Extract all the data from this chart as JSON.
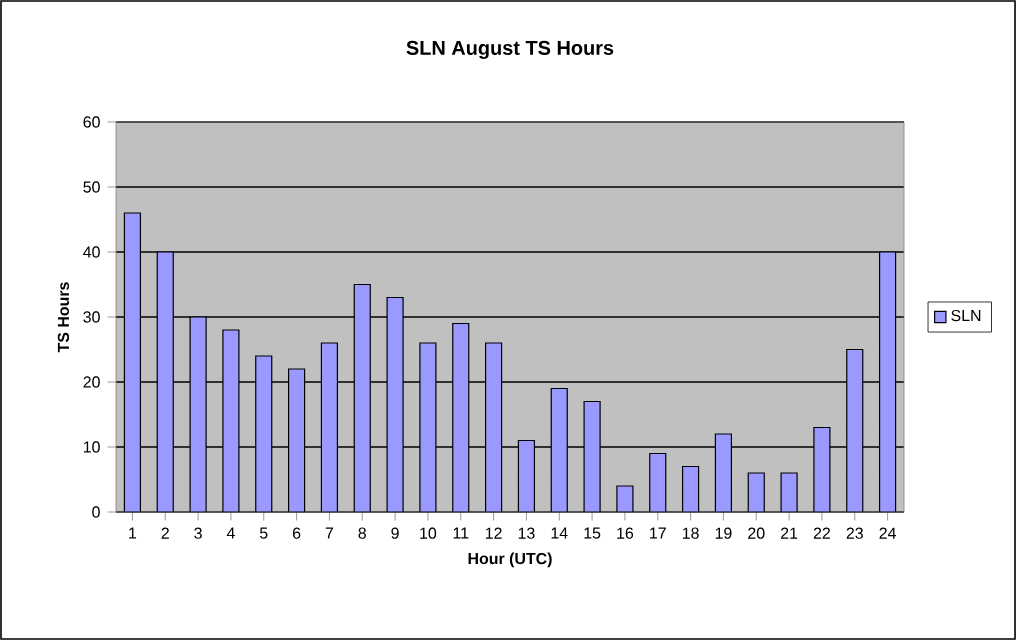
{
  "chart_data": {
    "type": "bar",
    "title": "SLN August TS Hours",
    "xlabel": "Hour (UTC)",
    "ylabel": "TS Hours",
    "categories": [
      "1",
      "2",
      "3",
      "4",
      "5",
      "6",
      "7",
      "8",
      "9",
      "10",
      "11",
      "12",
      "13",
      "14",
      "15",
      "16",
      "17",
      "18",
      "19",
      "20",
      "21",
      "22",
      "23",
      "24"
    ],
    "series": [
      {
        "name": "SLN",
        "color": "#9999ff",
        "values": [
          46,
          40,
          30,
          28,
          24,
          22,
          26,
          35,
          33,
          26,
          29,
          26,
          11,
          19,
          17,
          4,
          9,
          7,
          12,
          6,
          6,
          13,
          25,
          40
        ]
      }
    ],
    "ylim": [
      0,
      60
    ],
    "yticks": [
      0,
      10,
      20,
      30,
      40,
      50,
      60
    ],
    "grid": "y",
    "legend": "right"
  }
}
